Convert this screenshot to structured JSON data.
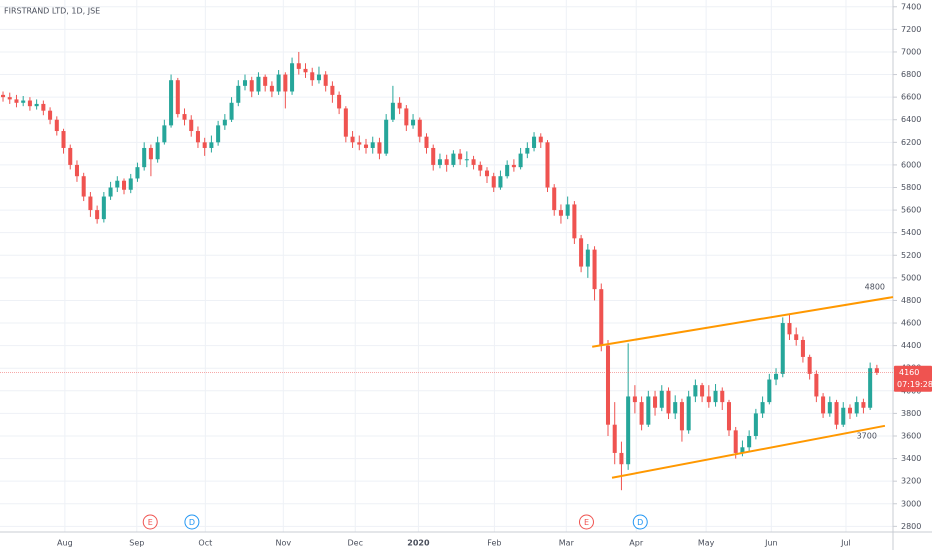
{
  "chart_data": {
    "type": "candlestick",
    "title": "FIRSTRAND LTD, 1D, JSE",
    "up_color": "#26a69a",
    "down_color": "#ef5350",
    "open": [
      6620,
      6600,
      6580,
      6550,
      6570,
      6520,
      6540,
      6480,
      6400,
      6300,
      6150,
      6000,
      5900,
      5720,
      5600,
      5520,
      5720,
      5800,
      5860,
      5780,
      5880,
      5980,
      6150,
      6050,
      6200,
      6350,
      6750,
      6450,
      6400,
      6300,
      6200,
      6150,
      6200,
      6350,
      6400,
      6550,
      6700,
      6750,
      6650,
      6780,
      6700,
      6650,
      6800,
      6650,
      6900,
      6850,
      6820,
      6750,
      6800,
      6700,
      6620,
      6500,
      6250,
      6200,
      6180,
      6150,
      6200,
      6100,
      6400,
      6550,
      6500,
      6350,
      6400,
      6250,
      6150,
      6000,
      6050,
      6000,
      6100,
      6050,
      6050,
      6000,
      5950,
      5900,
      5800,
      5900,
      6000,
      5980,
      6100,
      6150,
      6250,
      6200,
      5800,
      5600,
      5550,
      5650,
      5350,
      5100,
      5250,
      4900,
      4400,
      3700,
      3450,
      3350,
      3950,
      3900,
      3700,
      3950,
      3850,
      4000,
      3800,
      3900,
      3650,
      3950,
      4050,
      3950,
      3900,
      4000,
      3900,
      3650,
      3450,
      3500,
      3600,
      3800,
      3900,
      4100,
      4150,
      4600,
      4500,
      4450,
      4300,
      4150,
      3950,
      3800,
      3900,
      3700,
      3850,
      3800,
      3900,
      3850,
      4200
    ],
    "high": [
      6650,
      6640,
      6620,
      6610,
      6600,
      6580,
      6570,
      6510,
      6430,
      6320,
      6180,
      6040,
      5930,
      5760,
      5640,
      5760,
      5850,
      5900,
      5880,
      5920,
      6020,
      6200,
      6180,
      6250,
      6400,
      6800,
      6770,
      6500,
      6440,
      6340,
      6240,
      6260,
      6390,
      6450,
      6600,
      6750,
      6800,
      6780,
      6820,
      6800,
      6740,
      6840,
      6820,
      6950,
      7000,
      6900,
      6860,
      6870,
      6830,
      6740,
      6650,
      6520,
      6300,
      6260,
      6230,
      6250,
      6240,
      6450,
      6700,
      6600,
      6530,
      6450,
      6420,
      6280,
      6180,
      6100,
      6090,
      6130,
      6140,
      6120,
      6080,
      6030,
      5980,
      5930,
      5950,
      6040,
      6050,
      6150,
      6200,
      6290,
      6280,
      6220,
      5830,
      5650,
      5720,
      5680,
      5380,
      5300,
      5280,
      4950,
      4450,
      3900,
      3550,
      4420,
      4050,
      3950,
      4000,
      4000,
      4050,
      4030,
      3960,
      3930,
      4000,
      4100,
      4070,
      4050,
      4060,
      4030,
      3920,
      3680,
      3560,
      3650,
      3840,
      3950,
      4150,
      4200,
      4650,
      4680,
      4560,
      4480,
      4320,
      4180,
      3980,
      3950,
      3920,
      3900,
      3880,
      3950,
      3930,
      4250,
      4230
    ],
    "low": [
      6560,
      6540,
      6510,
      6520,
      6480,
      6490,
      6440,
      6360,
      6260,
      6100,
      5960,
      5850,
      5680,
      5540,
      5480,
      5490,
      5690,
      5760,
      5740,
      5750,
      5850,
      5950,
      5900,
      6020,
      6180,
      6330,
      6420,
      6350,
      6250,
      6150,
      6080,
      6110,
      6170,
      6310,
      6380,
      6520,
      6660,
      6600,
      6620,
      6650,
      6600,
      6620,
      6500,
      6620,
      6800,
      6770,
      6700,
      6720,
      6650,
      6550,
      6450,
      6200,
      6150,
      6130,
      6100,
      6100,
      6050,
      6080,
      6380,
      6450,
      6300,
      6320,
      6200,
      6100,
      5950,
      5970,
      5940,
      5980,
      6000,
      5980,
      5960,
      5900,
      5840,
      5760,
      5780,
      5880,
      5940,
      5960,
      6060,
      6120,
      6150,
      5760,
      5550,
      5480,
      5520,
      5300,
      5050,
      5000,
      4800,
      4350,
      3600,
      3350,
      3120,
      3300,
      3800,
      3650,
      3680,
      3780,
      3820,
      3750,
      3750,
      3550,
      3620,
      3900,
      3900,
      3850,
      3860,
      3830,
      3600,
      3400,
      3420,
      3460,
      3570,
      3760,
      3880,
      4050,
      4120,
      4450,
      4400,
      4250,
      4100,
      3900,
      3760,
      3770,
      3660,
      3680,
      3750,
      3770,
      3800,
      3830,
      4140
    ],
    "close": [
      6600,
      6580,
      6550,
      6570,
      6520,
      6540,
      6480,
      6400,
      6300,
      6150,
      6000,
      5900,
      5720,
      5600,
      5520,
      5720,
      5800,
      5860,
      5780,
      5880,
      5980,
      6150,
      6050,
      6200,
      6350,
      6750,
      6450,
      6400,
      6300,
      6200,
      6150,
      6200,
      6350,
      6400,
      6550,
      6700,
      6750,
      6650,
      6780,
      6700,
      6650,
      6800,
      6650,
      6900,
      6850,
      6820,
      6750,
      6800,
      6700,
      6620,
      6500,
      6250,
      6200,
      6180,
      6150,
      6200,
      6100,
      6400,
      6550,
      6500,
      6350,
      6400,
      6250,
      6150,
      6000,
      6050,
      6000,
      6100,
      6050,
      6050,
      6000,
      5950,
      5900,
      5800,
      5900,
      6000,
      5980,
      6100,
      6150,
      6250,
      6200,
      5800,
      5600,
      5550,
      5650,
      5350,
      5100,
      5250,
      4900,
      4400,
      3700,
      3450,
      3350,
      3950,
      3900,
      3700,
      3950,
      3850,
      4000,
      3800,
      3900,
      3650,
      3950,
      4050,
      3950,
      3900,
      4000,
      3900,
      3650,
      3450,
      3500,
      3600,
      3800,
      3900,
      4100,
      4150,
      4600,
      4500,
      4450,
      4300,
      4150,
      3950,
      3800,
      3900,
      3700,
      3850,
      3800,
      3900,
      3850,
      4200,
      4160
    ],
    "xlim": [
      -0.45,
      132.4
    ],
    "xticks": [
      {
        "value": 9.2,
        "label": "Aug"
      },
      {
        "value": 19.9,
        "label": "Sep"
      },
      {
        "value": 30.1,
        "label": "Oct"
      },
      {
        "value": 41.7,
        "label": "Nov"
      },
      {
        "value": 52.4,
        "label": "Dec"
      },
      {
        "value": 61.8,
        "label": "2020"
      },
      {
        "value": 73.1,
        "label": "Feb"
      },
      {
        "value": 83.8,
        "label": "Mar"
      },
      {
        "value": 94.2,
        "label": "Apr"
      },
      {
        "value": 104.6,
        "label": "May"
      },
      {
        "value": 114.3,
        "label": "Jun"
      },
      {
        "value": 125.4,
        "label": "Jul"
      }
    ],
    "ylim": [
      2750,
      7460
    ],
    "yticks": [
      2800,
      3000,
      3200,
      3400,
      3600,
      3800,
      4000,
      4200,
      4400,
      4600,
      4800,
      5000,
      5200,
      5400,
      5600,
      5800,
      6000,
      6200,
      6400,
      6600,
      6800,
      7000,
      7200,
      7400
    ],
    "grid": true,
    "last_price": 4160,
    "last_price_color": "#ef5350",
    "countdown": "07:19:28",
    "events": [
      {
        "label": "E",
        "x": 21.9,
        "color": "#ef5350"
      },
      {
        "label": "D",
        "x": 28.1,
        "color": "#2196f3"
      },
      {
        "label": "E",
        "x": 86.8,
        "color": "#ef5350"
      },
      {
        "label": "D",
        "x": 94.8,
        "color": "#2196f3"
      }
    ],
    "trendlines": [
      {
        "start": [
          87.65,
          4390
        ],
        "end": [
          132.4,
          4830
        ],
        "color": "#ff9800",
        "label": "4800"
      },
      {
        "start": [
          90.6,
          3230
        ],
        "end": [
          131.2,
          3690
        ],
        "color": "#ff9800",
        "label": "3700"
      }
    ]
  }
}
